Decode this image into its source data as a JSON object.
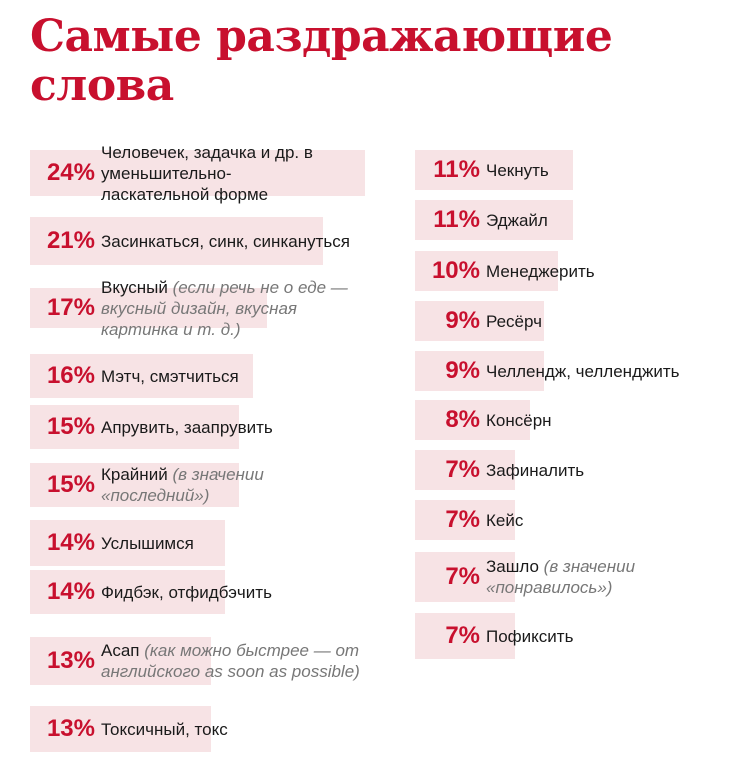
{
  "title_line1": "Самые раздражающие",
  "title_line2": "слова",
  "colors": {
    "accent": "#c8102e",
    "bar": "#f7e3e5",
    "text": "#1a1a1a",
    "note": "#777777"
  },
  "chart_data": {
    "type": "bar",
    "title": "Самые раздражающие слова",
    "value_format": "percent",
    "items": [
      {
        "percent": "24%",
        "value": 24,
        "label": "Человечек, задачка и др. в уменьшительно-ласкательной форме",
        "note": ""
      },
      {
        "percent": "21%",
        "value": 21,
        "label": "Засинкаться, синк, синкануться",
        "note": ""
      },
      {
        "percent": "17%",
        "value": 17,
        "label": "Вкусный",
        "note": "(если речь не о еде — вкусный дизайн, вкусная картинка и т. д.)"
      },
      {
        "percent": "16%",
        "value": 16,
        "label": "Мэтч, смэтчиться",
        "note": ""
      },
      {
        "percent": "15%",
        "value": 15,
        "label": "Апрувить, заапрувить",
        "note": ""
      },
      {
        "percent": "15%",
        "value": 15,
        "label": "Крайний",
        "note": "(в значении «последний»)"
      },
      {
        "percent": "14%",
        "value": 14,
        "label": "Услышимся",
        "note": ""
      },
      {
        "percent": "14%",
        "value": 14,
        "label": "Фидбэк, отфидбэчить",
        "note": ""
      },
      {
        "percent": "13%",
        "value": 13,
        "label": "Асап",
        "note": "(как можно быстрее — от английского as soon as possible)"
      },
      {
        "percent": "13%",
        "value": 13,
        "label": "Токсичный, токс",
        "note": ""
      },
      {
        "percent": "11%",
        "value": 11,
        "label": "Чекнуть",
        "note": ""
      },
      {
        "percent": "11%",
        "value": 11,
        "label": "Эджайл",
        "note": ""
      },
      {
        "percent": "10%",
        "value": 10,
        "label": "Менеджерить",
        "note": ""
      },
      {
        "percent": "9%",
        "value": 9,
        "label": "Ресёрч",
        "note": ""
      },
      {
        "percent": "9%",
        "value": 9,
        "label": "Челлендж, челленджить",
        "note": ""
      },
      {
        "percent": "8%",
        "value": 8,
        "label": "Консёрн",
        "note": ""
      },
      {
        "percent": "7%",
        "value": 7,
        "label": "Зафиналить",
        "note": ""
      },
      {
        "percent": "7%",
        "value": 7,
        "label": "Кейс",
        "note": ""
      },
      {
        "percent": "7%",
        "value": 7,
        "label": "Зашло",
        "note": "(в значении «понравилось»)"
      },
      {
        "percent": "7%",
        "value": 7,
        "label": "Пофиксить",
        "note": ""
      }
    ]
  }
}
